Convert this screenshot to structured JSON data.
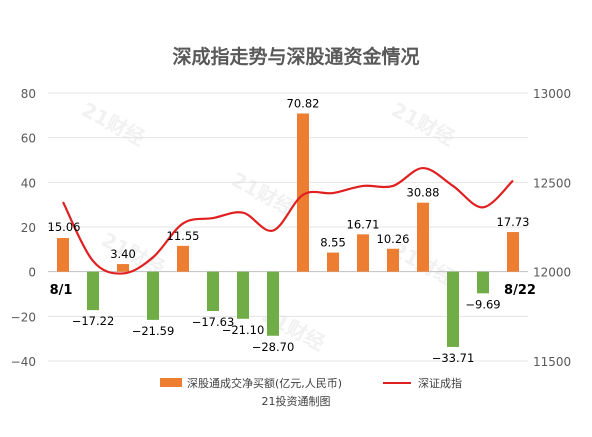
{
  "chart_data": {
    "type": "bar+line",
    "title": "深成指走势与深股通资金情况",
    "source": "21投资通制图",
    "watermark": "21财经",
    "y_left": {
      "min": -40,
      "max": 80,
      "ticks": [
        -40,
        -20,
        0,
        20,
        40,
        60,
        80
      ]
    },
    "y_right": {
      "min": 11500,
      "max": 13000,
      "ticks": [
        11500,
        12000,
        12500,
        13000
      ]
    },
    "date_labels": {
      "first": "8/1",
      "last": "8/22"
    },
    "bar_series": {
      "name": "深股通成交净买额(亿元,人民币)",
      "values": [
        15.06,
        -17.22,
        3.4,
        -21.59,
        11.55,
        -17.63,
        -21.1,
        -28.7,
        70.82,
        8.55,
        16.71,
        10.26,
        30.88,
        -33.71,
        -9.69,
        17.73
      ],
      "labels": [
        "15.06",
        "−17.22",
        "3.40",
        "−21.59",
        "11.55",
        "−17.63",
        "−21.10",
        "−28.70",
        "70.82",
        "8.55",
        "16.71",
        "10.26",
        "30.88",
        "−33.71",
        "−9.69",
        "17.73"
      ],
      "positive_color": "#ed7d31",
      "negative_color": "#70ad47"
    },
    "line_series": {
      "name": "深证成指",
      "values": [
        12390,
        12060,
        11990,
        12080,
        12270,
        12300,
        12330,
        12230,
        12430,
        12440,
        12480,
        12480,
        12580,
        12480,
        12360,
        12510
      ],
      "color": "#e02020"
    }
  }
}
